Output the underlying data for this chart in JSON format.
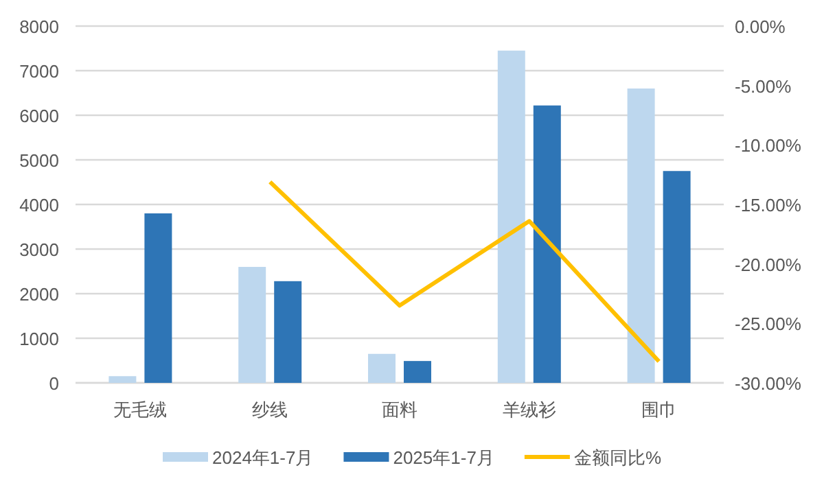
{
  "chart_data": {
    "type": "bar",
    "categories": [
      "无毛绒",
      "纱线",
      "面料",
      "羊绒衫",
      "围巾"
    ],
    "series": [
      {
        "name": "2024年1-7月",
        "color": "#bdd7ee",
        "values": [
          150,
          2600,
          650,
          7450,
          6600
        ]
      },
      {
        "name": "2025年1-7月",
        "color": "#2e75b6",
        "values": [
          3800,
          2280,
          490,
          6220,
          4750
        ]
      },
      {
        "name": "金额同比%",
        "type": "line",
        "axis": "y2",
        "color": "#ffc000",
        "values": [
          null,
          -13.1,
          -23.5,
          -16.4,
          -28.2
        ]
      }
    ],
    "ylim": [
      0,
      8000
    ],
    "yticks": [
      0,
      1000,
      2000,
      3000,
      4000,
      5000,
      6000,
      7000,
      8000
    ],
    "y2lim": [
      -30,
      0
    ],
    "y2ticks": [
      {
        "value": 0,
        "label": "0.00%"
      },
      {
        "value": -5,
        "label": "-5.00%"
      },
      {
        "value": -10,
        "label": "-10.00%"
      },
      {
        "value": -15,
        "label": "-15.00%"
      },
      {
        "value": -20,
        "label": "-20.00%"
      },
      {
        "value": -25,
        "label": "-25.00%"
      },
      {
        "value": -30,
        "label": "-30.00%"
      }
    ],
    "grid": "y",
    "legend": "bottom",
    "marker": "none"
  }
}
